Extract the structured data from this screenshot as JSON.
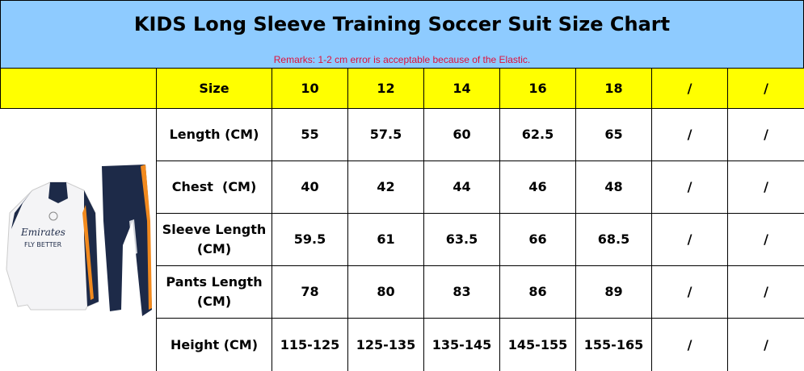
{
  "header": {
    "title": "KIDS Long Sleeve Training Soccer Suit Size Chart",
    "remarks": "Remarks: 1-2 cm error is acceptable because of the Elastic."
  },
  "table": {
    "header": [
      "Size",
      10,
      12,
      14,
      16,
      18,
      "/",
      "/"
    ],
    "rows": [
      [
        "Length (CM)",
        55,
        57.5,
        60,
        62.5,
        65,
        "/",
        "/"
      ],
      [
        "Chest  (CM)",
        40,
        42,
        44,
        46,
        48,
        "/",
        "/"
      ],
      [
        "Sleeve Length (CM)",
        59.5,
        61,
        63.5,
        66,
        68.5,
        "/",
        "/"
      ],
      [
        "Pants Length (CM)",
        78,
        80,
        83,
        86,
        89,
        "/",
        "/"
      ],
      [
        "Height (CM)",
        "115-125",
        "125-135",
        "135-145",
        "145-155",
        "155-165",
        "/",
        "/"
      ]
    ]
  }
}
